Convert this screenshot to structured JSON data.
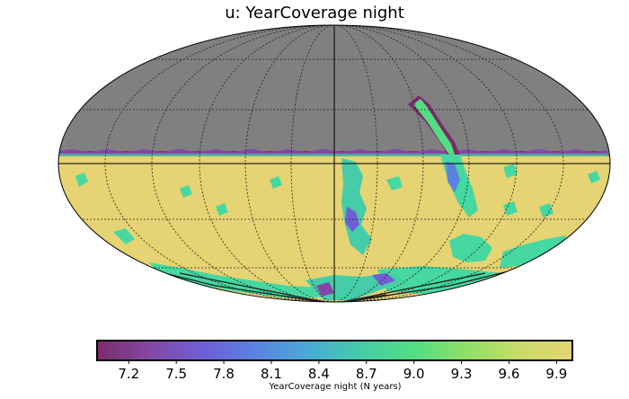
{
  "chart_data": {
    "type": "heatmap",
    "projection": "mollweide",
    "title": "u: YearCoverage night",
    "colorbar": {
      "label": "YearCoverage night (N years)",
      "ticks": [
        "7.2",
        "7.5",
        "7.8",
        "8.1",
        "8.4",
        "8.7",
        "9.0",
        "9.3",
        "9.6",
        "9.9"
      ],
      "range": [
        7.0,
        10.0
      ],
      "colormap": "viridis-like (purple to yellow)",
      "stops": [
        "#7b2c6a",
        "#8348a5",
        "#6f5fd4",
        "#5a83e0",
        "#4aa9d6",
        "#45cca8",
        "#52de83",
        "#8fe066",
        "#c8dc6a",
        "#e5d374"
      ]
    },
    "regions": [
      {
        "name": "masked-north",
        "value": null,
        "color": "#808080"
      },
      {
        "name": "main-southern-sky",
        "value": 10.0,
        "color": "#e5d374"
      },
      {
        "name": "galactic-plane",
        "value": 9.0,
        "color": "#45d8a0"
      },
      {
        "name": "footprint-edge",
        "value": 7.3,
        "color": "#7b2c6a"
      }
    ],
    "grid": true
  }
}
